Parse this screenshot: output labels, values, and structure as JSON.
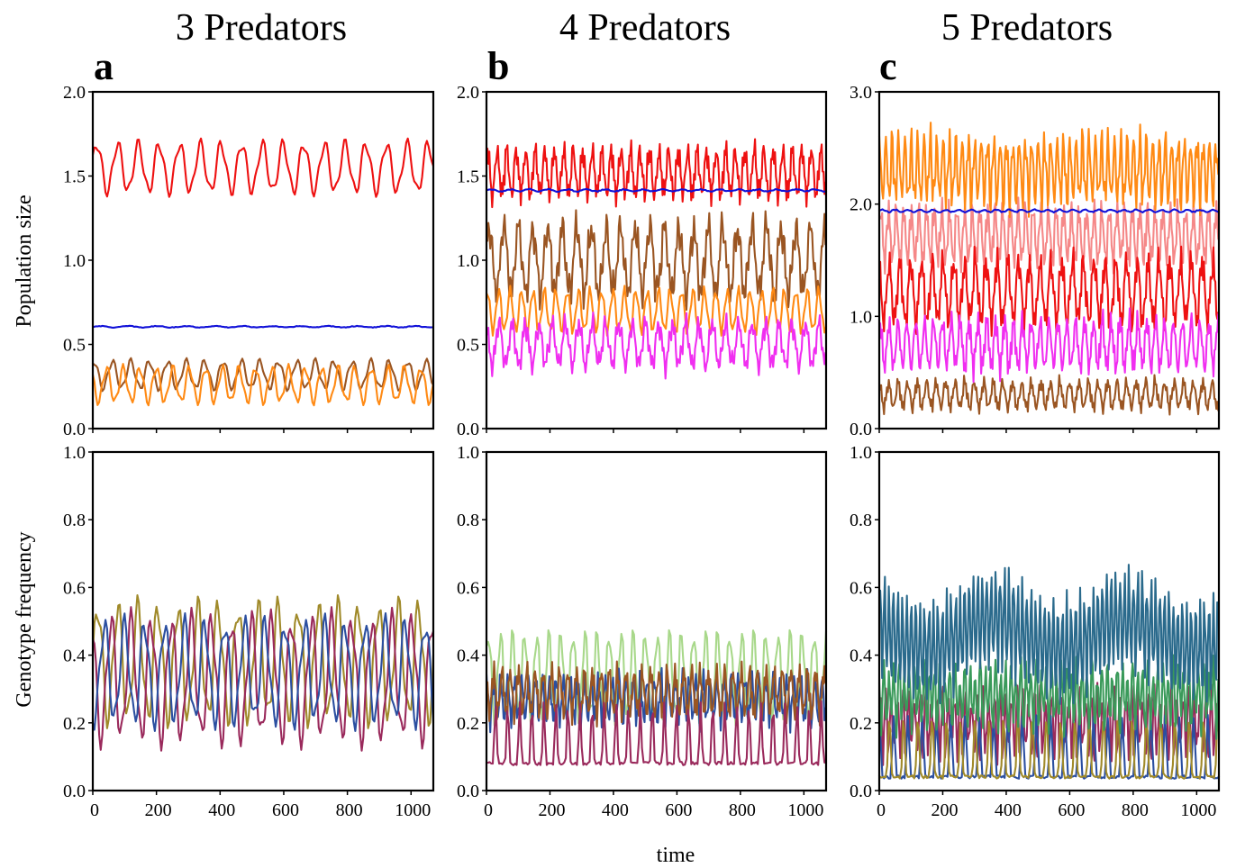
{
  "figure": {
    "column_titles": [
      "3 Predators",
      "4 Predators",
      "5 Predators"
    ],
    "panel_letters": [
      "a",
      "b",
      "c"
    ],
    "shared_xlabel": "time"
  },
  "colors": {
    "red": "#ee1111",
    "blue": "#1010d8",
    "brown": "#9a5522",
    "orange": "#ff8a14",
    "magenta": "#f02ef0",
    "salmon": "#f58888",
    "maroon": "#9a2a5c",
    "olive": "#a08a2a",
    "navy": "#2b4fa0",
    "lightgreen": "#a8d88a",
    "teal": "#2a6a8c",
    "green": "#3a9a5a"
  },
  "chart_data": [
    {
      "type": "line",
      "id": "pop-3",
      "ylabel": "Population size",
      "xlabel": "",
      "xlim": [
        0,
        1070
      ],
      "ylim": [
        0,
        2.0
      ],
      "xticks": [
        0,
        200,
        400,
        600,
        800,
        1000
      ],
      "yticks": [
        0.0,
        0.5,
        1.0,
        1.5,
        2.0
      ],
      "ytick_labels": [
        "0.0",
        "0.5",
        "1.0",
        "1.5",
        "2.0"
      ],
      "series": [
        {
          "color": "red",
          "mean": 1.55,
          "amp": 0.14,
          "period": 65,
          "shape": "smooth",
          "phase": 0.3
        },
        {
          "color": "blue",
          "mean": 0.605,
          "amp": 0.004,
          "period": 90,
          "shape": "flat",
          "phase": 0
        },
        {
          "color": "brown",
          "mean": 0.32,
          "amp": 0.08,
          "period": 58,
          "shape": "smooth",
          "phase": 1.2
        },
        {
          "color": "orange",
          "mean": 0.26,
          "amp": 0.1,
          "period": 52,
          "shape": "smooth",
          "phase": 2.6
        }
      ]
    },
    {
      "type": "line",
      "id": "pop-4",
      "ylabel": "",
      "xlabel": "",
      "xlim": [
        0,
        1070
      ],
      "ylim": [
        0,
        2.0
      ],
      "xticks": [
        0,
        200,
        400,
        600,
        800,
        1000
      ],
      "yticks": [
        0.0,
        0.5,
        1.0,
        1.5,
        2.0
      ],
      "ytick_labels": [
        "0.0",
        "0.5",
        "1.0",
        "1.5",
        "2.0"
      ],
      "series": [
        {
          "color": "brown",
          "mean": 1.0,
          "amp": 0.19,
          "period": 46,
          "shape": "jagged",
          "phase": 0.4
        },
        {
          "color": "orange",
          "mean": 0.7,
          "amp": 0.12,
          "period": 36,
          "shape": "smooth",
          "phase": 1.1
        },
        {
          "color": "magenta",
          "mean": 0.5,
          "amp": 0.12,
          "period": 42,
          "shape": "jagged",
          "phase": 2.0
        },
        {
          "color": "red",
          "mean": 1.52,
          "amp": 0.13,
          "period": 30,
          "shape": "jagged",
          "phase": 0.8
        },
        {
          "color": "blue",
          "mean": 1.415,
          "amp": 0.006,
          "period": 60,
          "shape": "flat",
          "phase": 0
        }
      ]
    },
    {
      "type": "line",
      "id": "pop-5",
      "ylabel": "",
      "xlabel": "",
      "xlim": [
        0,
        1070
      ],
      "ylim": [
        0,
        3.0
      ],
      "xticks": [
        0,
        200,
        400,
        600,
        800,
        1000
      ],
      "yticks": [
        0.0,
        1.0,
        2.0,
        3.0
      ],
      "ytick_labels": [
        "0.0",
        "1.0",
        "2.0",
        "3.0"
      ],
      "series": [
        {
          "color": "salmon",
          "mean": 1.72,
          "amp": 0.22,
          "period": 24,
          "shape": "jagged",
          "phase": 0.2
        },
        {
          "color": "orange",
          "mean": 2.3,
          "amp": 0.26,
          "period": 20,
          "shape": "jagged",
          "phase": 1.3
        },
        {
          "color": "red",
          "mean": 1.22,
          "amp": 0.26,
          "period": 34,
          "shape": "jagged",
          "phase": 2.1
        },
        {
          "color": "magenta",
          "mean": 0.75,
          "amp": 0.2,
          "period": 28,
          "shape": "jagged",
          "phase": 0.9
        },
        {
          "color": "brown",
          "mean": 0.3,
          "amp": 0.11,
          "period": 30,
          "shape": "jagged",
          "phase": 1.7
        },
        {
          "color": "blue",
          "mean": 1.94,
          "amp": 0.01,
          "period": 40,
          "shape": "flat",
          "phase": 0
        }
      ]
    },
    {
      "type": "line",
      "id": "geno-3",
      "ylabel": "Genotype frequency",
      "xlabel": "",
      "xlim": [
        0,
        1070
      ],
      "ylim": [
        0,
        1.0
      ],
      "xticks": [
        0,
        200,
        400,
        600,
        800,
        1000
      ],
      "yticks": [
        0.0,
        0.2,
        0.4,
        0.6,
        0.8,
        1.0
      ],
      "ytick_labels": [
        "0.0",
        "0.2",
        "0.4",
        "0.6",
        "0.8",
        "1.0"
      ],
      "xtick_labels": [
        "0",
        "200",
        "400",
        "600",
        "800",
        "1000"
      ],
      "series": [
        {
          "color": "olive",
          "mean": 0.38,
          "amp": 0.16,
          "period": 63,
          "shape": "smooth",
          "phase": 0.0
        },
        {
          "color": "maroon",
          "mean": 0.33,
          "amp": 0.17,
          "period": 63,
          "shape": "smooth",
          "phase": 2.1
        },
        {
          "color": "navy",
          "mean": 0.35,
          "amp": 0.14,
          "period": 63,
          "shape": "smooth",
          "phase": 4.2
        }
      ]
    },
    {
      "type": "line",
      "id": "geno-4",
      "ylabel": "",
      "xlabel": "",
      "xlim": [
        0,
        1070
      ],
      "ylim": [
        0,
        1.0
      ],
      "xticks": [
        0,
        200,
        400,
        600,
        800,
        1000
      ],
      "yticks": [
        0.0,
        0.2,
        0.4,
        0.6,
        0.8,
        1.0
      ],
      "ytick_labels": [
        "0.0",
        "0.2",
        "0.4",
        "0.6",
        "0.8",
        "1.0"
      ],
      "xtick_labels": [
        "0",
        "200",
        "400",
        "600",
        "800",
        "1000"
      ],
      "series": [
        {
          "color": "lightgreen",
          "mean": 0.34,
          "amp": 0.12,
          "period": 38,
          "shape": "smooth",
          "phase": 0.5
        },
        {
          "color": "navy",
          "mean": 0.27,
          "amp": 0.06,
          "period": 22,
          "shape": "jagged",
          "phase": 1.4
        },
        {
          "color": "brown",
          "mean": 0.29,
          "amp": 0.06,
          "period": 26,
          "shape": "jagged",
          "phase": 2.3
        },
        {
          "color": "maroon",
          "mean": 0.08,
          "amp": 0.1,
          "period": 38,
          "shape": "peaky",
          "phase": 3.1
        }
      ]
    },
    {
      "type": "line",
      "id": "geno-5",
      "ylabel": "",
      "xlabel": "",
      "xlim": [
        0,
        1070
      ],
      "ylim": [
        0,
        1.0
      ],
      "xticks": [
        0,
        200,
        400,
        600,
        800,
        1000
      ],
      "yticks": [
        0.0,
        0.2,
        0.4,
        0.6,
        0.8,
        1.0
      ],
      "ytick_labels": [
        "0.0",
        "0.2",
        "0.4",
        "0.6",
        "0.8",
        "1.0"
      ],
      "xtick_labels": [
        "0",
        "200",
        "400",
        "600",
        "800",
        "1000"
      ],
      "series": [
        {
          "color": "maroon",
          "mean": 0.2,
          "amp": 0.08,
          "period": 18,
          "shape": "jagged",
          "phase": 0.7
        },
        {
          "color": "navy",
          "mean": 0.04,
          "amp": 0.1,
          "period": 45,
          "shape": "peaky",
          "phase": 1.5
        },
        {
          "color": "olive",
          "mean": 0.04,
          "amp": 0.1,
          "period": 45,
          "shape": "peaky",
          "phase": 3.4
        },
        {
          "color": "green",
          "mean": 0.28,
          "amp": 0.08,
          "period": 16,
          "shape": "jagged",
          "phase": 2.2
        },
        {
          "color": "teal",
          "mean": 0.46,
          "amp": 0.13,
          "period": 14,
          "shape": "jagged",
          "phase": 0.3
        }
      ]
    }
  ]
}
